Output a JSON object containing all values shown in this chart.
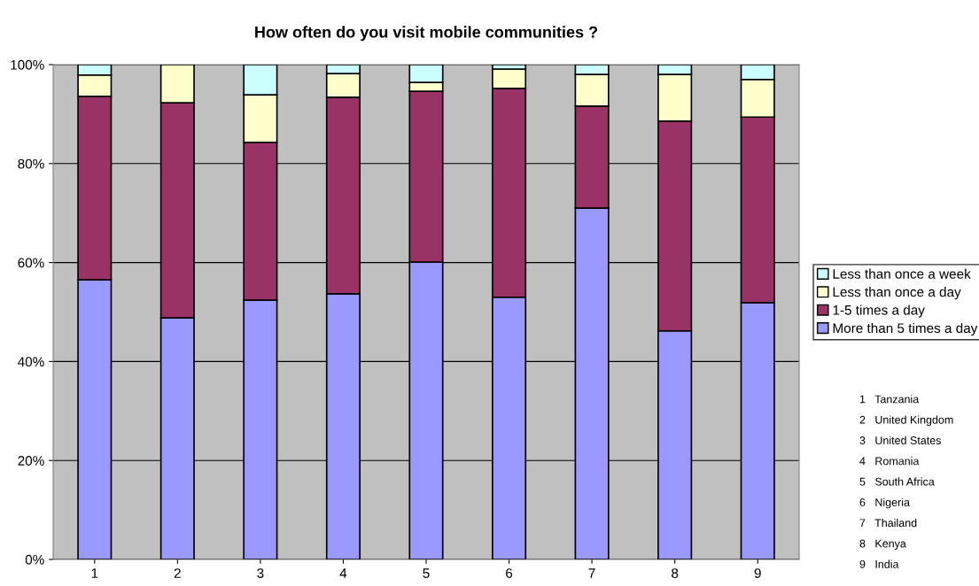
{
  "chart_data": {
    "type": "bar",
    "title": "How often do you visit mobile communities ?",
    "categories": [
      "1",
      "2",
      "3",
      "4",
      "5",
      "6",
      "7",
      "8",
      "9"
    ],
    "stacked": true,
    "series": [
      {
        "name": "More than 5 times a day",
        "color": "#9999ff",
        "values": [
          56.5,
          48.8,
          52.4,
          53.7,
          60.1,
          53.0,
          71.0,
          46.2,
          51.9
        ]
      },
      {
        "name": "1-5 times a day",
        "color": "#993366",
        "values": [
          37.1,
          43.5,
          31.9,
          39.7,
          34.5,
          42.2,
          20.6,
          42.4,
          37.5
        ]
      },
      {
        "name": "Less than once a day",
        "color": "#ffffcc",
        "values": [
          4.3,
          7.7,
          9.6,
          4.8,
          1.8,
          3.9,
          6.4,
          9.4,
          7.6
        ]
      },
      {
        "name": "Less than once a week",
        "color": "#ccffff",
        "values": [
          2.1,
          null,
          6.1,
          1.8,
          3.6,
          0.9,
          2.0,
          2.0,
          3.0
        ]
      }
    ],
    "ylim": [
      0,
      100
    ],
    "yticks": [
      {
        "value": 0,
        "label": "0%"
      },
      {
        "value": 20,
        "label": "20%"
      },
      {
        "value": 40,
        "label": "40%"
      },
      {
        "value": 60,
        "label": "60%"
      },
      {
        "value": 80,
        "label": "80%"
      },
      {
        "value": 100,
        "label": "100%"
      }
    ],
    "grid": "y",
    "legend": "right",
    "annotations": [
      "1   Tanzania",
      "2   United Kingdom",
      "3   United States",
      "4   Romania",
      "5   South Africa",
      "6   Nigeria",
      "7   Thailand",
      "8   Kenya",
      "9   India"
    ]
  }
}
